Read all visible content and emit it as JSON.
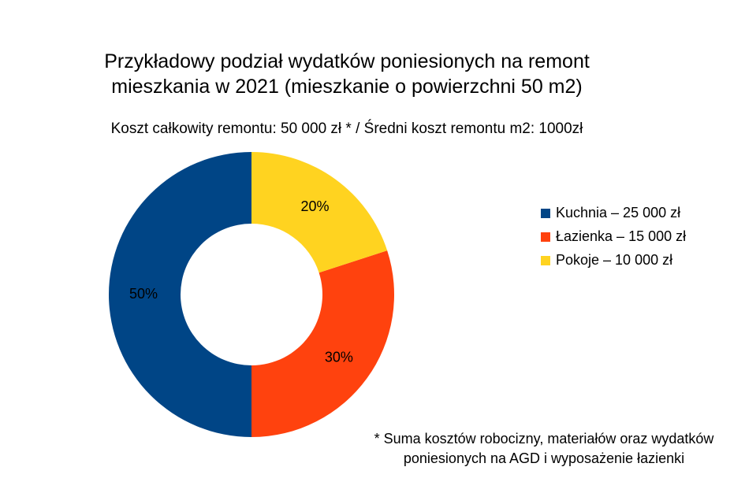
{
  "chart_data": {
    "type": "donut",
    "title": "Przykładowy podział wydatków poniesionych na remont mieszkania w 2021 (mieszkanie o powierzchni 50 m2)",
    "subtitle": "Koszt całkowity remontu: 50 000 zł * / Średni koszt remontu m2: 1000zł",
    "categories": [
      "Kuchnia – 25 000 zł",
      "Łazienka – 15 000 zł",
      "Pokoje – 10 000 zł"
    ],
    "values": [
      50,
      30,
      20
    ],
    "value_labels": [
      "50%",
      "30%",
      "20%"
    ],
    "colors": [
      "#004586",
      "#ff420e",
      "#ffd320"
    ],
    "legend_position": "right",
    "note": "* Suma kosztów robocizny, materiałów oraz wydatków poniesionych na AGD i wyposażenie łazienki"
  }
}
